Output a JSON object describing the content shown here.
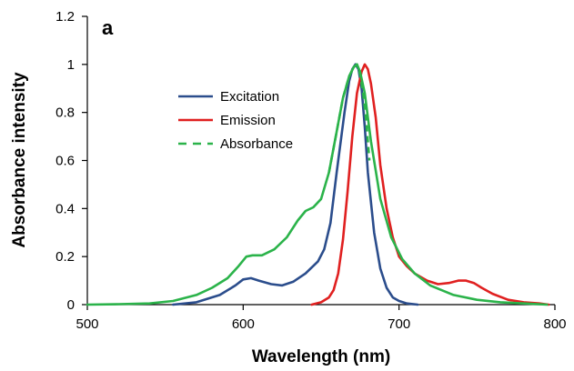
{
  "chart_data": {
    "type": "line",
    "panel_label": "a",
    "title": "",
    "xlabel": "Wavelength (nm)",
    "ylabel": "Absorbance intensity",
    "xlim": [
      500,
      800
    ],
    "ylim": [
      0,
      1.2
    ],
    "x_ticks": [
      500,
      600,
      700,
      800
    ],
    "y_ticks": [
      0,
      0.2,
      0.4,
      0.6,
      0.8,
      1,
      1.2
    ],
    "x_tick_labels": [
      "500",
      "600",
      "700",
      "800"
    ],
    "y_tick_labels": [
      "0",
      "0.2",
      "0.4",
      "0.6",
      "0.8",
      "1",
      "1.2"
    ],
    "grid": false,
    "legend_position": "center-left",
    "series": [
      {
        "name": "Excitation",
        "color": "#2b4d8c",
        "dash": "solid",
        "x": [
          555,
          570,
          585,
          595,
          600,
          605,
          610,
          618,
          625,
          632,
          640,
          648,
          652,
          656,
          660,
          665,
          668,
          670,
          672,
          674,
          676,
          678,
          680,
          684,
          688,
          692,
          696,
          700,
          705,
          712
        ],
        "y": [
          0.0,
          0.01,
          0.04,
          0.08,
          0.105,
          0.11,
          0.1,
          0.085,
          0.08,
          0.095,
          0.13,
          0.18,
          0.23,
          0.34,
          0.55,
          0.8,
          0.93,
          0.98,
          1.0,
          0.98,
          0.9,
          0.74,
          0.55,
          0.3,
          0.15,
          0.07,
          0.03,
          0.015,
          0.005,
          0.0
        ]
      },
      {
        "name": "Emission",
        "color": "#e02020",
        "dash": "solid",
        "x": [
          644,
          650,
          655,
          658,
          661,
          664,
          667,
          670,
          673,
          676,
          678,
          680,
          682,
          685,
          688,
          692,
          696,
          700,
          705,
          710,
          718,
          725,
          732,
          738,
          743,
          748,
          753,
          760,
          770,
          780,
          790,
          796
        ],
        "y": [
          0.0,
          0.01,
          0.03,
          0.06,
          0.13,
          0.27,
          0.47,
          0.7,
          0.88,
          0.97,
          1.0,
          0.98,
          0.92,
          0.78,
          0.58,
          0.4,
          0.28,
          0.2,
          0.16,
          0.13,
          0.1,
          0.085,
          0.09,
          0.1,
          0.1,
          0.09,
          0.07,
          0.045,
          0.02,
          0.01,
          0.005,
          0.0
        ]
      },
      {
        "name": "Absorbance",
        "color": "#2bb34a",
        "dash": "solid",
        "x": [
          500,
          520,
          540,
          555,
          570,
          580,
          590,
          597,
          602,
          606,
          612,
          620,
          628,
          635,
          640,
          645,
          650,
          655,
          660,
          664,
          668,
          671,
          673,
          675,
          678,
          682,
          688,
          695,
          702,
          710,
          720,
          735,
          750,
          765,
          780,
          795
        ],
        "y": [
          0.0,
          0.002,
          0.005,
          0.015,
          0.04,
          0.07,
          0.11,
          0.16,
          0.2,
          0.205,
          0.205,
          0.23,
          0.28,
          0.35,
          0.39,
          0.405,
          0.44,
          0.55,
          0.72,
          0.86,
          0.95,
          0.99,
          1.0,
          0.97,
          0.88,
          0.68,
          0.44,
          0.28,
          0.19,
          0.13,
          0.08,
          0.04,
          0.02,
          0.01,
          0.005,
          0.0
        ]
      },
      {
        "name": "",
        "color": "#2bb34a",
        "dash": "dashed",
        "x": [
          655,
          660,
          664,
          668,
          671,
          673,
          675,
          677,
          679,
          681
        ],
        "y": [
          0.55,
          0.72,
          0.86,
          0.95,
          0.99,
          1.0,
          0.96,
          0.88,
          0.76,
          0.6
        ]
      }
    ],
    "legend": [
      {
        "label": "Excitation",
        "color": "#2b4d8c",
        "dash": "solid"
      },
      {
        "label": "Emission",
        "color": "#e02020",
        "dash": "solid"
      },
      {
        "label": "Absorbance",
        "color": "#2bb34a",
        "dash": "dashed"
      }
    ]
  }
}
